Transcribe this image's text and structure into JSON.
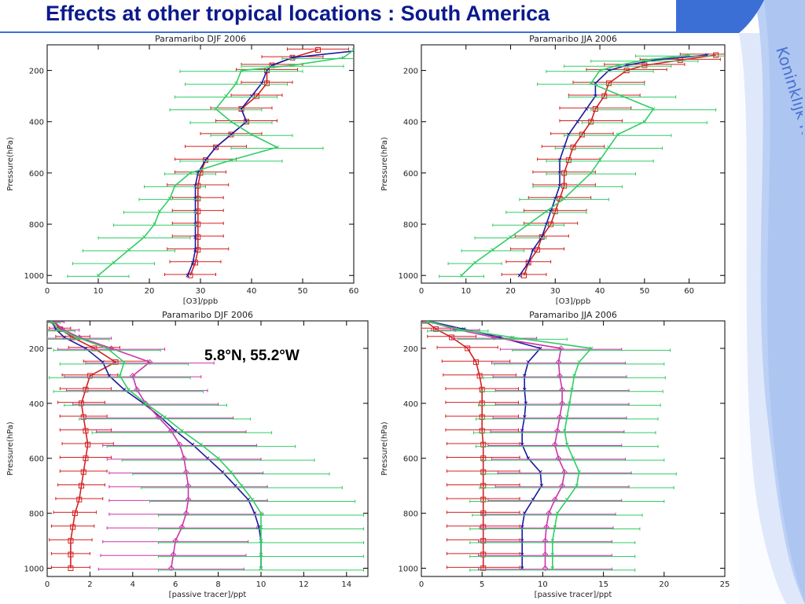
{
  "slide": {
    "title": "Effects at other tropical locations : South America",
    "institute": "Koninklijk Nederlands Meteorologisch Instituut",
    "annotation": "5.8°N, 55.2°W",
    "colors": {
      "title": "#0b1a8c",
      "band_blue": "#3b6fd6",
      "band_light": "#c9d8f7",
      "institute_text": "#4a72d0"
    }
  },
  "chart_data": [
    {
      "type": "line",
      "title": "Paramaribo DJF 2006",
      "xlabel": "[O3]/ppb",
      "ylabel": "Pressure(hPa)",
      "xlim": [
        0,
        60
      ],
      "ylim": [
        1030,
        100
      ],
      "xticks": [
        0,
        10,
        20,
        30,
        40,
        50,
        60
      ],
      "yticks": [
        200,
        400,
        600,
        800,
        1000
      ],
      "pressure": [
        120,
        150,
        180,
        200,
        250,
        300,
        350,
        400,
        450,
        500,
        550,
        600,
        650,
        700,
        750,
        800,
        850,
        900,
        950,
        1000
      ],
      "series": [
        {
          "color": "#d42020",
          "marker": "square",
          "values": [
            53,
            48,
            44,
            43,
            43,
            41,
            38,
            39,
            36,
            33,
            31,
            30,
            29.5,
            29.5,
            29.5,
            29.5,
            29.5,
            29.5,
            29,
            28
          ],
          "err": [
            6,
            6,
            6,
            6,
            5,
            5,
            6,
            6,
            6,
            6,
            6,
            5,
            6,
            5,
            5,
            5,
            5,
            6,
            5,
            5
          ]
        },
        {
          "color": "#1a1aa0",
          "marker": "none",
          "values": [
            62,
            48,
            44,
            43,
            42,
            40,
            38,
            39,
            36,
            33,
            31,
            29.5,
            29,
            29,
            29,
            29,
            29,
            29,
            28.5,
            27.5
          ],
          "err": [
            0,
            0,
            0,
            0,
            0,
            0,
            0,
            0,
            0,
            0,
            0,
            0,
            0,
            0,
            0,
            0,
            0,
            0,
            0,
            0
          ]
        },
        {
          "color": "#33cc66",
          "marker": "none",
          "values": [
            60,
            58,
            48,
            38,
            37,
            35,
            33,
            36,
            40,
            45,
            36,
            28,
            25,
            24,
            22,
            21,
            19,
            16,
            13,
            10
          ],
          "err": [
            0,
            12,
            10,
            12,
            10,
            10,
            9,
            8,
            8,
            9,
            10,
            5,
            6,
            6,
            7,
            8,
            9,
            9,
            8,
            6
          ]
        }
      ]
    },
    {
      "type": "line",
      "title": "Paramaribo JJA 2006",
      "xlabel": "[O3]/ppb",
      "ylabel": "Pressure(hPa)",
      "xlim": [
        0,
        68
      ],
      "ylim": [
        1030,
        100
      ],
      "xticks": [
        0,
        10,
        20,
        30,
        40,
        50,
        60
      ],
      "yticks": [
        200,
        400,
        600,
        800,
        1000
      ],
      "pressure": [
        140,
        160,
        180,
        200,
        250,
        300,
        350,
        400,
        450,
        500,
        550,
        600,
        650,
        700,
        750,
        800,
        850,
        900,
        950,
        1000
      ],
      "series": [
        {
          "color": "#d42020",
          "marker": "square",
          "values": [
            66,
            58,
            50,
            46,
            42,
            41,
            39,
            38,
            36,
            34,
            33,
            32,
            32,
            31,
            30,
            29,
            27,
            26,
            24,
            23
          ],
          "err": [
            8,
            9,
            9,
            9,
            8,
            8,
            8,
            7,
            7,
            7,
            7,
            7,
            7,
            7,
            7,
            6,
            6,
            6,
            5,
            5
          ]
        },
        {
          "color": "#1a1aa0",
          "marker": "none",
          "values": [
            64,
            52,
            46,
            42,
            39,
            39,
            37,
            35,
            33,
            32,
            31,
            31,
            31,
            30,
            29,
            28,
            27,
            25,
            24,
            22
          ],
          "err": [
            0,
            0,
            0,
            0,
            0,
            0,
            0,
            0,
            0,
            0,
            0,
            0,
            0,
            0,
            0,
            0,
            0,
            0,
            0,
            0
          ]
        },
        {
          "color": "#33cc66",
          "marker": "none",
          "values": [
            60,
            50,
            44,
            40,
            38,
            45,
            52,
            50,
            44,
            42,
            40,
            38,
            35,
            32,
            28,
            24,
            20,
            16,
            12,
            9
          ],
          "err": [
            12,
            12,
            12,
            12,
            12,
            12,
            14,
            14,
            12,
            12,
            12,
            10,
            10,
            10,
            9,
            8,
            8,
            7,
            6,
            5
          ]
        }
      ]
    },
    {
      "type": "line",
      "title": "Paramaribo DJF 2006",
      "xlabel": "[passive tracer]/ppt",
      "ylabel": "Pressure(hPa)",
      "xlim": [
        0,
        15
      ],
      "ylim": [
        1030,
        100
      ],
      "xticks": [
        0,
        2,
        4,
        6,
        8,
        10,
        12,
        14
      ],
      "yticks": [
        200,
        400,
        600,
        800,
        1000
      ],
      "pressure": [
        100,
        130,
        160,
        200,
        250,
        300,
        350,
        400,
        450,
        500,
        550,
        600,
        650,
        700,
        750,
        800,
        850,
        900,
        950,
        1000
      ],
      "series": [
        {
          "color": "#d42020",
          "marker": "square",
          "values": [
            0.3,
            0.6,
            1.2,
            2.2,
            3.2,
            2.0,
            1.8,
            1.6,
            1.7,
            1.8,
            1.9,
            1.8,
            1.7,
            1.6,
            1.5,
            1.3,
            1.2,
            1.1,
            1.1,
            1.1
          ],
          "err": [
            0.3,
            0.5,
            0.8,
            1.2,
            1.5,
            1.3,
            1.2,
            1.1,
            1.1,
            1.2,
            1.2,
            1.2,
            1.1,
            1.1,
            1.1,
            1.0,
            1.0,
            1.0,
            0.9,
            0.9
          ]
        },
        {
          "color": "#1a1aa0",
          "marker": "none",
          "values": [
            0.2,
            0.4,
            0.8,
            1.8,
            2.6,
            2.9,
            3.6,
            4.5,
            5.3,
            6.0,
            6.8,
            7.5,
            8.2,
            8.8,
            9.4,
            9.7,
            9.9,
            10.0,
            10.0,
            10.0
          ],
          "err": [
            0,
            0,
            0,
            0,
            0,
            0,
            0,
            0,
            0,
            0,
            0,
            0,
            0,
            0,
            0,
            0,
            0,
            0,
            0,
            0
          ]
        },
        {
          "color": "#cc33aa",
          "marker": "diamond",
          "values": [
            0.3,
            0.7,
            1.5,
            3.0,
            4.8,
            4.0,
            4.2,
            4.6,
            5.2,
            5.8,
            6.2,
            6.4,
            6.5,
            6.6,
            6.6,
            6.5,
            6.3,
            6.0,
            5.9,
            5.8
          ],
          "err": [
            0.5,
            0.8,
            1.5,
            2.5,
            3.0,
            3.2,
            3.3,
            3.4,
            3.5,
            3.5,
            3.6,
            3.6,
            3.6,
            3.7,
            3.7,
            3.6,
            3.5,
            3.4,
            3.4,
            3.4
          ]
        },
        {
          "color": "#33cc66",
          "marker": "none",
          "values": [
            0.2,
            0.5,
            1.4,
            2.8,
            3.6,
            3.4,
            3.8,
            4.6,
            5.5,
            6.3,
            7.2,
            8.0,
            8.6,
            9.1,
            9.6,
            10.0,
            10.0,
            10.0,
            10.0,
            10.0
          ],
          "err": [
            0.4,
            0.8,
            1.5,
            2.5,
            3.0,
            3.3,
            3.5,
            3.8,
            4.0,
            4.2,
            4.4,
            4.5,
            4.6,
            4.7,
            4.8,
            4.8,
            4.8,
            4.8,
            4.8,
            4.8
          ]
        }
      ]
    },
    {
      "type": "line",
      "title": "Paramaribo JJA 2006",
      "xlabel": "[passive tracer]/ppt",
      "ylabel": "Pressure(hPa)",
      "xlim": [
        0,
        25
      ],
      "ylim": [
        1030,
        100
      ],
      "xticks": [
        0,
        5,
        10,
        15,
        20,
        25
      ],
      "yticks": [
        200,
        400,
        600,
        800,
        1000
      ],
      "pressure": [
        100,
        130,
        160,
        200,
        250,
        300,
        350,
        400,
        450,
        500,
        550,
        600,
        650,
        700,
        750,
        800,
        850,
        900,
        950,
        1000
      ],
      "series": [
        {
          "color": "#d42020",
          "marker": "square",
          "values": [
            0.3,
            1.2,
            2.5,
            3.8,
            4.5,
            4.8,
            5.0,
            5.0,
            5.0,
            5.0,
            5.1,
            5.1,
            5.1,
            5.1,
            5.1,
            5.1,
            5.1,
            5.1,
            5.1,
            5.1
          ],
          "err": [
            0.5,
            1.2,
            2.0,
            2.5,
            2.8,
            3.0,
            3.0,
            3.0,
            3.0,
            3.0,
            3.0,
            3.0,
            3.0,
            3.0,
            3.0,
            3.0,
            3.0,
            3.0,
            3.0,
            3.0
          ]
        },
        {
          "color": "#1a1aa0",
          "marker": "none",
          "values": [
            0.5,
            3.5,
            6.5,
            9.8,
            8.8,
            8.5,
            8.5,
            8.6,
            8.5,
            8.3,
            8.3,
            8.8,
            9.8,
            9.9,
            9.2,
            8.5,
            8.3,
            8.3,
            8.3,
            8.3
          ],
          "err": [
            0,
            0,
            0,
            0,
            0,
            0,
            0,
            0,
            0,
            0,
            0,
            0,
            0,
            0,
            0,
            0,
            0,
            0,
            0,
            0
          ]
        },
        {
          "color": "#cc33aa",
          "marker": "diamond",
          "values": [
            0.4,
            2.8,
            6.0,
            11.5,
            11.3,
            11.4,
            11.6,
            11.6,
            11.4,
            11.2,
            11.0,
            11.3,
            11.8,
            11.6,
            11.0,
            10.5,
            10.3,
            10.2,
            10.2,
            10.2
          ],
          "err": [
            0.5,
            2.0,
            3.5,
            5.0,
            5.5,
            5.5,
            5.5,
            5.5,
            5.5,
            5.5,
            5.5,
            5.5,
            5.5,
            5.5,
            5.5,
            5.5,
            5.5,
            5.5,
            5.5,
            5.5
          ]
        },
        {
          "color": "#33cc66",
          "marker": "none",
          "values": [
            0.4,
            3.0,
            7.5,
            14.0,
            13.0,
            12.6,
            12.4,
            12.2,
            12.0,
            11.8,
            12.0,
            12.5,
            13.0,
            12.8,
            12.0,
            11.2,
            11.0,
            10.8,
            10.8,
            10.8
          ],
          "err": [
            0.5,
            2.5,
            4.5,
            6.5,
            7.0,
            7.5,
            7.5,
            7.5,
            7.5,
            7.5,
            7.5,
            7.5,
            8.0,
            8.0,
            8.0,
            7.0,
            7.0,
            6.8,
            6.8,
            6.8
          ]
        }
      ]
    }
  ]
}
